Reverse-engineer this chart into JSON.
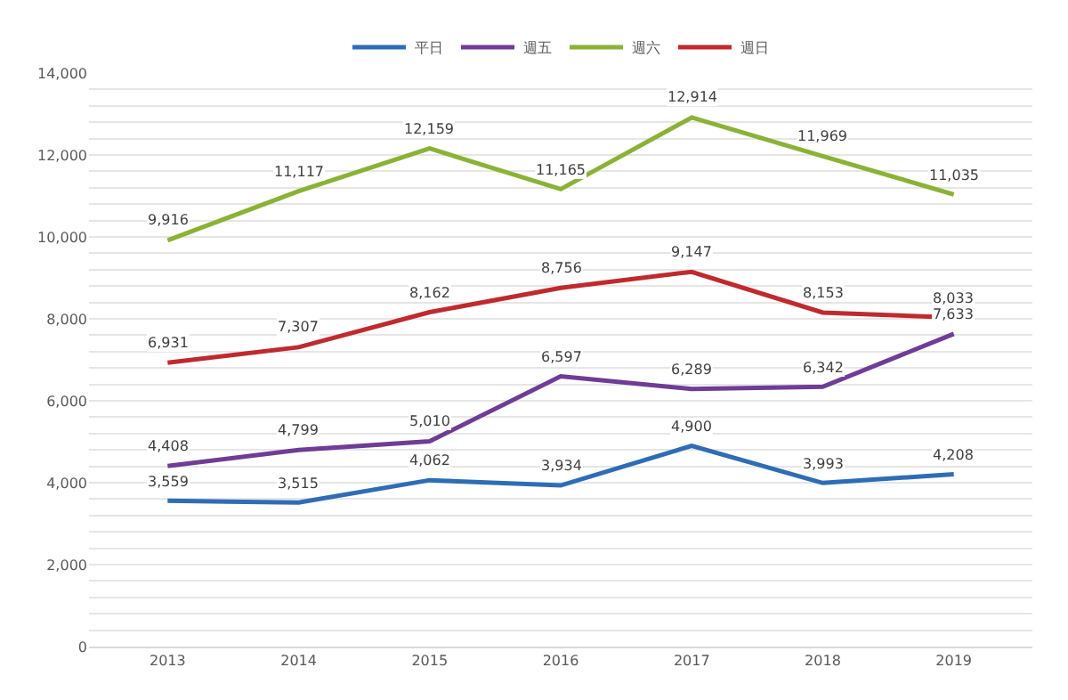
{
  "chart_data": {
    "type": "line",
    "categories": [
      "2013",
      "2014",
      "2015",
      "2016",
      "2017",
      "2018",
      "2019"
    ],
    "series": [
      {
        "name": "平日",
        "color": "#2e6db5",
        "values": [
          3559,
          3515,
          4062,
          3934,
          4900,
          3993,
          4208
        ],
        "value_labels": [
          "3,559",
          "3,515",
          "4,062",
          "3,934",
          "4,900",
          "3,993",
          "4,208"
        ]
      },
      {
        "name": "週五",
        "color": "#6f3c96",
        "values": [
          4408,
          4799,
          5010,
          6597,
          6289,
          6342,
          7633
        ],
        "value_labels": [
          "4,408",
          "4,799",
          "5,010",
          "6,597",
          "6,289",
          "6,342",
          "7,633"
        ]
      },
      {
        "name": "週六",
        "color": "#8bb236",
        "values": [
          9916,
          11117,
          12159,
          11165,
          12914,
          11969,
          11035
        ],
        "value_labels": [
          "9,916",
          "11,117",
          "12,159",
          "11,165",
          "12,914",
          "11,969",
          "11,035"
        ]
      },
      {
        "name": "週日",
        "color": "#bf2a2e",
        "values": [
          6931,
          7307,
          8162,
          8756,
          9147,
          8153,
          8033
        ],
        "value_labels": [
          "6,931",
          "7,307",
          "8,162",
          "8,756",
          "9,147",
          "8,153",
          "8,033"
        ]
      }
    ],
    "ylim": [
      0,
      14000
    ],
    "yticks": [
      0,
      {
        "value": 400,
        "label": null
      },
      {
        "value": 800,
        "label": null
      },
      {
        "value": 1200,
        "label": null
      },
      {
        "value": 1600,
        "label": null
      },
      {
        "value": 2000,
        "label": "2,000"
      },
      {
        "value": 2400,
        "label": null
      },
      {
        "value": 2800,
        "label": null
      },
      {
        "value": 3200,
        "label": null
      },
      {
        "value": 3600,
        "label": null
      },
      {
        "value": 4000,
        "label": "4,000"
      },
      {
        "value": 4400,
        "label": null
      },
      {
        "value": 4800,
        "label": null
      },
      {
        "value": 5200,
        "label": null
      },
      {
        "value": 5600,
        "label": null
      },
      {
        "value": 6000,
        "label": "6,000"
      },
      {
        "value": 6400,
        "label": null
      },
      {
        "value": 6800,
        "label": null
      },
      {
        "value": 7200,
        "label": null
      },
      {
        "value": 7600,
        "label": null
      },
      {
        "value": 8000,
        "label": "8,000"
      },
      {
        "value": 8400,
        "label": null
      },
      {
        "value": 8800,
        "label": null
      },
      {
        "value": 9200,
        "label": null
      },
      {
        "value": 9600,
        "label": null
      },
      {
        "value": 10000,
        "label": "10,000"
      },
      {
        "value": 10400,
        "label": null
      },
      {
        "value": 10800,
        "label": null
      },
      {
        "value": 11200,
        "label": null
      },
      {
        "value": 11600,
        "label": null
      },
      {
        "value": 12000,
        "label": "12,000"
      },
      {
        "value": 12400,
        "label": null
      },
      {
        "value": 12800,
        "label": null
      },
      {
        "value": 13200,
        "label": null
      },
      {
        "value": 13600,
        "label": null
      },
      {
        "value": 14000,
        "label": "14,000"
      }
    ],
    "grid": "y",
    "legend": "top",
    "marker": "none",
    "line_style": "solid"
  }
}
